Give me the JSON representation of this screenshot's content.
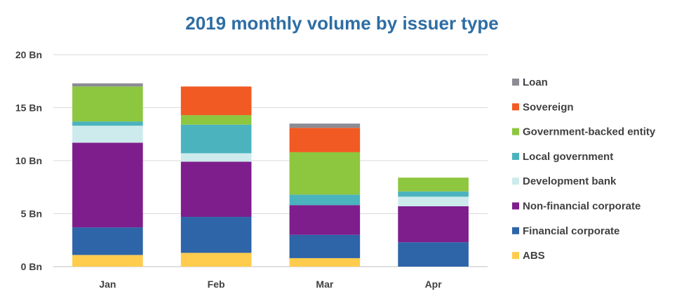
{
  "chart_data": {
    "type": "bar",
    "stacked": true,
    "title": "2019 monthly volume by issuer type",
    "xlabel": "",
    "ylabel": "",
    "categories": [
      "Jan",
      "Feb",
      "Mar",
      "Apr"
    ],
    "ylim": [
      0,
      20
    ],
    "yticks": [
      0,
      5,
      10,
      15,
      20
    ],
    "ytick_labels": [
      "0 Bn",
      "5 Bn",
      "10 Bn",
      "15 Bn",
      "20 Bn"
    ],
    "grid": true,
    "legend_position": "right",
    "series": [
      {
        "name": "ABS",
        "color": "#FFCC4D",
        "values": [
          1.1,
          1.3,
          0.8,
          0.0
        ]
      },
      {
        "name": "Financial corporate",
        "color": "#2E64A8",
        "values": [
          2.6,
          3.4,
          2.2,
          2.3
        ]
      },
      {
        "name": "Non-financial corporate",
        "color": "#7E1E8C",
        "values": [
          8.0,
          5.2,
          2.8,
          3.4
        ]
      },
      {
        "name": "Development bank",
        "color": "#CDEBEC",
        "values": [
          1.6,
          0.8,
          0.0,
          0.9
        ]
      },
      {
        "name": "Local government",
        "color": "#4BB3BE",
        "values": [
          0.4,
          2.7,
          1.0,
          0.5
        ]
      },
      {
        "name": "Government-backed entity",
        "color": "#8DC63F",
        "values": [
          3.3,
          0.9,
          4.0,
          1.3
        ]
      },
      {
        "name": "Sovereign",
        "color": "#F15A22",
        "values": [
          0.0,
          2.7,
          2.3,
          0.0
        ]
      },
      {
        "name": "Loan",
        "color": "#8C8C94",
        "values": [
          0.3,
          0.0,
          0.4,
          0.0
        ]
      }
    ]
  }
}
